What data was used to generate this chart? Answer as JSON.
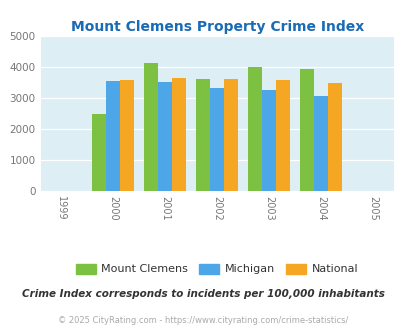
{
  "title": "Mount Clemens Property Crime Index",
  "years": [
    2000,
    2001,
    2002,
    2003,
    2004
  ],
  "mount_clemens": [
    2500,
    4150,
    3620,
    4020,
    3930
  ],
  "michigan": [
    3560,
    3520,
    3340,
    3270,
    3060
  ],
  "national": [
    3600,
    3660,
    3620,
    3590,
    3490
  ],
  "bar_color_mc": "#7dc142",
  "bar_color_mi": "#4da6e8",
  "bar_color_na": "#f5a623",
  "bg_color": "#ddeef4",
  "title_color": "#1a6bb5",
  "ylim": [
    0,
    5000
  ],
  "yticks": [
    0,
    1000,
    2000,
    3000,
    4000,
    5000
  ],
  "xlim": [
    1998.6,
    2005.4
  ],
  "legend_labels": [
    "Mount Clemens",
    "Michigan",
    "National"
  ],
  "footnote1": "Crime Index corresponds to incidents per 100,000 inhabitants",
  "footnote2": "© 2025 CityRating.com - https://www.cityrating.com/crime-statistics/",
  "bar_width": 0.27
}
